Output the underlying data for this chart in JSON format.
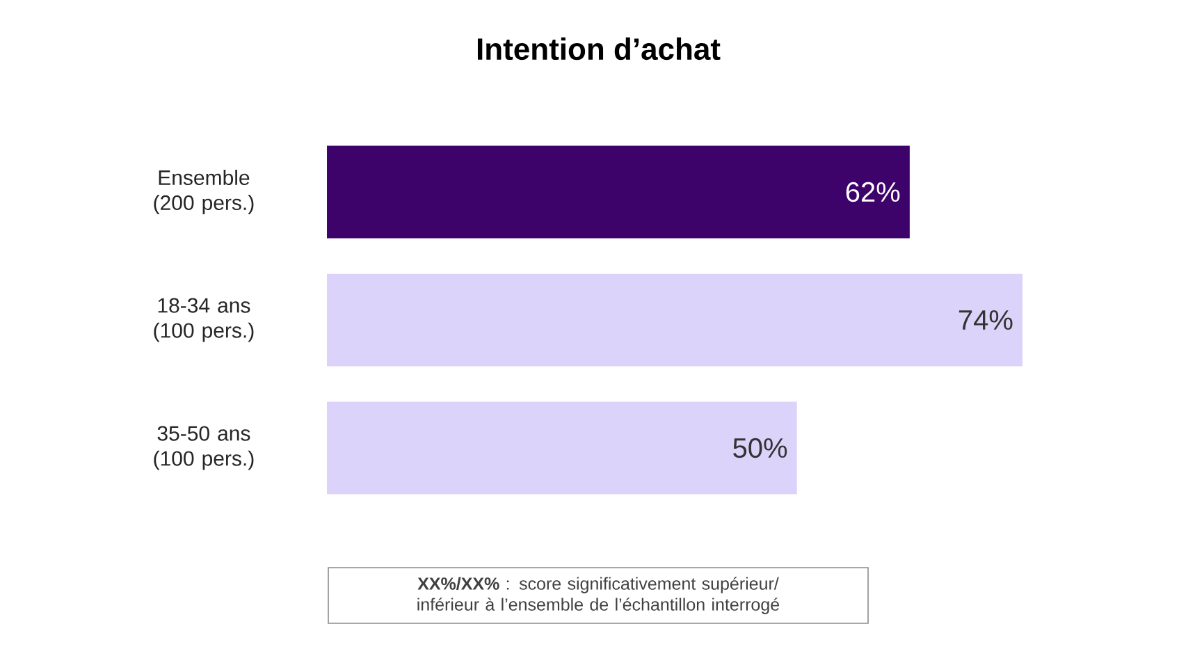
{
  "chart_data": {
    "type": "bar",
    "orientation": "horizontal",
    "title": "Intention d’achat",
    "categories": [
      "Ensemble (200 pers.)",
      "18-34 ans (100 pers.)",
      "35-50 ans (100 pers.)"
    ],
    "values": [
      62,
      74,
      50
    ],
    "colors": [
      "#3d036b",
      "#dcd3fb",
      "#dcd3fb"
    ],
    "value_labels": [
      "62%",
      "74%",
      "50%"
    ],
    "annotations": [
      "**XX%/XX%** : score significativement supérieur/ inférieur à l’ensemble de l’échantillon interrogé"
    ]
  }
}
